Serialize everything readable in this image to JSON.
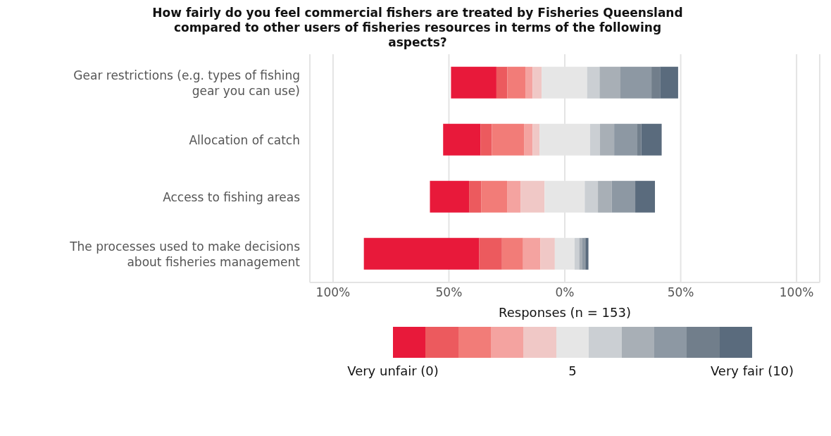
{
  "chart_data": {
    "type": "bar",
    "orientation": "horizontal",
    "title": "How fairly do you feel commercial fishers are treated by Fisheries Queensland compared to other users of fisheries resources in terms of the following aspects?",
    "xlabel": "Responses (n = 153)",
    "annotations": [
      "Very unfair (0)",
      "5",
      "Very fair (10)"
    ],
    "categories": [
      "Gear restrictions (e.g. types of fishing gear you can use)",
      "Allocation of catch",
      "Access to fishing areas",
      "The processes used to make decisions about fisheries management"
    ],
    "series": [
      {
        "color": "#e8193a",
        "base": [
          -49.1,
          -52.5,
          -58.2,
          -86.7
        ],
        "values": [
          19.6,
          16.1,
          16.9,
          49.8
        ]
      },
      {
        "color": "#ec5a5e",
        "base": [
          -29.5,
          -36.4,
          -41.3,
          -36.9
        ],
        "values": [
          4.7,
          4.9,
          5.2,
          9.8
        ]
      },
      {
        "color": "#f27c78",
        "base": [
          -24.8,
          -31.5,
          -36.1,
          -27.1
        ],
        "values": [
          7.8,
          13.9,
          11.2,
          9.1
        ]
      },
      {
        "color": "#f4a3a0",
        "base": [
          -17.0,
          -17.6,
          -24.9,
          -18.0
        ],
        "values": [
          3.1,
          3.7,
          5.8,
          7.5
        ]
      },
      {
        "color": "#f0c8c6",
        "base": [
          -13.9,
          -13.9,
          -19.1,
          -10.5
        ],
        "values": [
          3.9,
          3.0,
          10.4,
          6.2
        ]
      },
      {
        "color": "#e6e6e6",
        "base": [
          -10.0,
          -10.9,
          -8.7,
          -4.3
        ],
        "values": [
          19.6,
          21.8,
          17.3,
          8.5
        ]
      },
      {
        "color": "#cbcfd3",
        "base": [
          9.6,
          10.9,
          8.6,
          4.2
        ],
        "values": [
          5.4,
          4.3,
          5.7,
          2.0
        ]
      },
      {
        "color": "#a8afb6",
        "base": [
          15.0,
          15.2,
          14.3,
          6.2
        ],
        "values": [
          9.0,
          6.1,
          6.0,
          1.4
        ]
      },
      {
        "color": "#8d98a3",
        "base": [
          24.0,
          21.3,
          20.3,
          7.6
        ],
        "values": [
          13.4,
          10.0,
          10.1,
          1.0
        ]
      },
      {
        "color": "#717e8b",
        "base": [
          37.4,
          31.3,
          null,
          8.6
        ],
        "values": [
          3.7,
          1.7,
          null,
          0.3
        ]
      },
      {
        "color": "#5a6b7d",
        "base": [
          41.1,
          33.0,
          30.4,
          8.9
        ],
        "values": [
          7.8,
          8.8,
          8.5,
          1.3
        ]
      }
    ],
    "xlim": [
      -110,
      110
    ],
    "xticks": [
      {
        "value": -100,
        "label": "100%"
      },
      {
        "value": -50,
        "label": "50%"
      },
      {
        "value": 0,
        "label": "0%"
      },
      {
        "value": 50,
        "label": "50%"
      },
      {
        "value": 100,
        "label": "100%"
      }
    ],
    "grid": "x"
  }
}
